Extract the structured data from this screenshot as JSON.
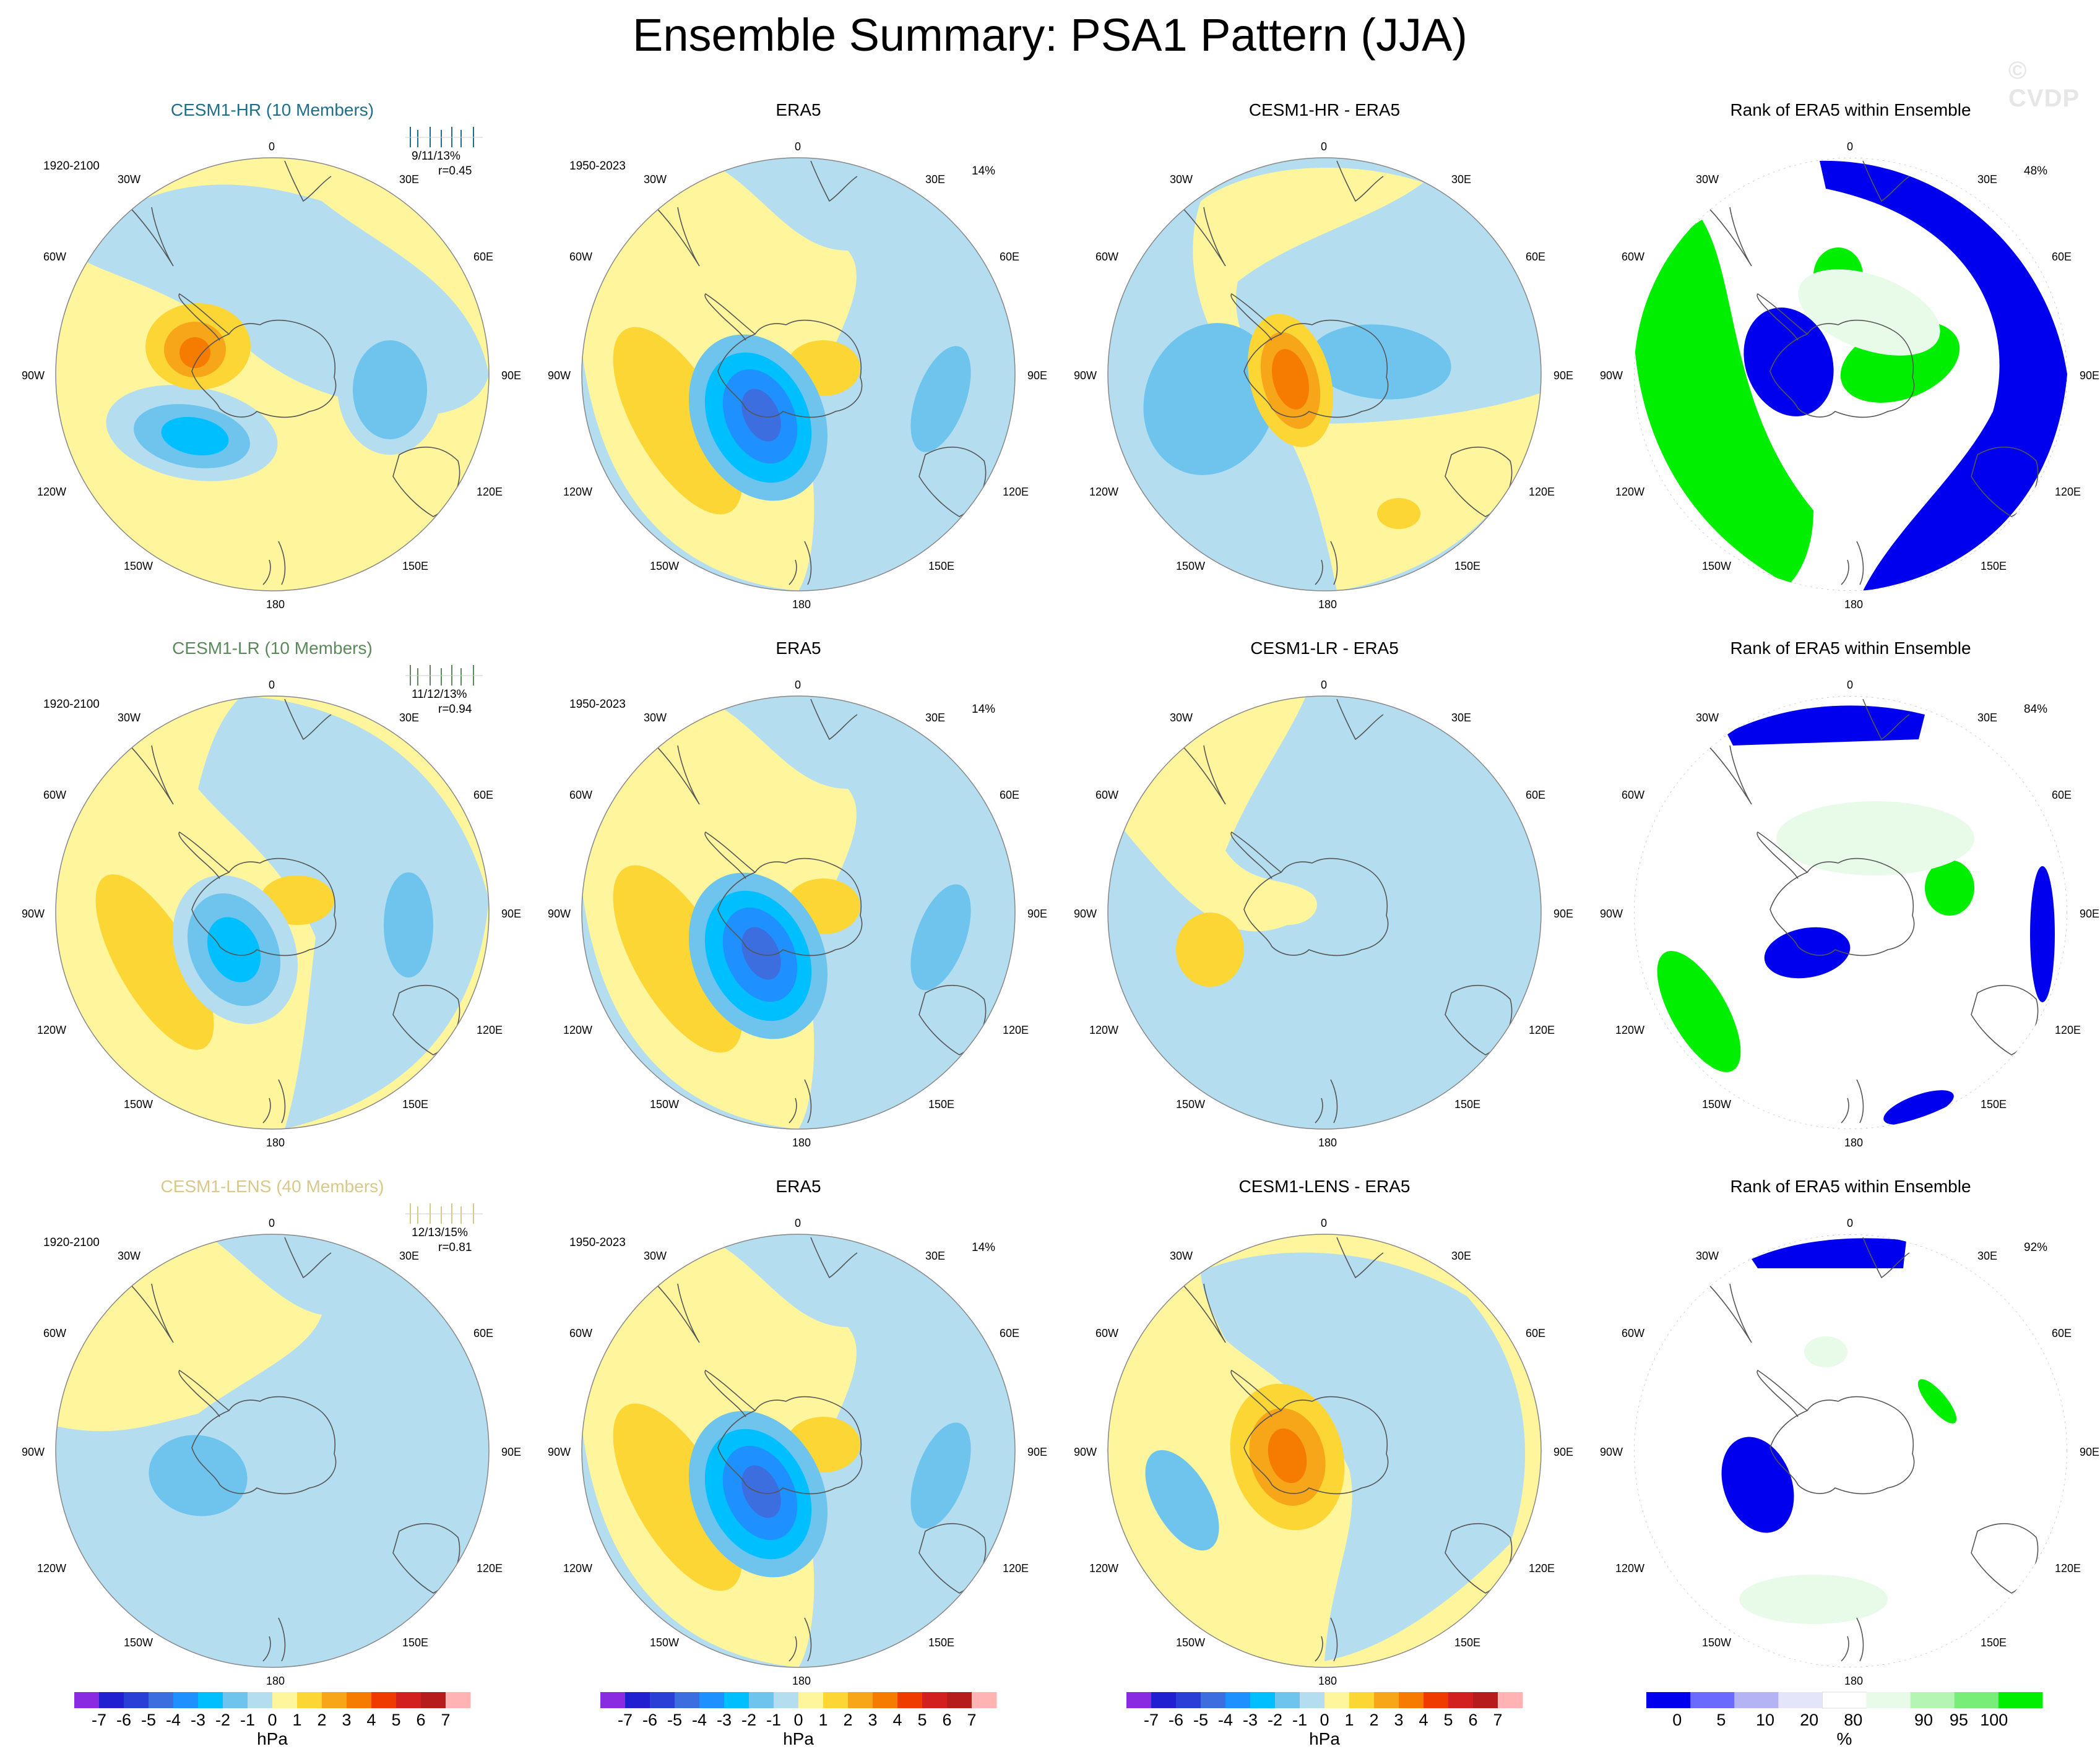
{
  "title": "Ensemble Summary: PSA1 Pattern (JJA)",
  "watermark": "© CVDP",
  "colors": {
    "model_hr": "#1f6f8b",
    "model_lr": "#5a8a5a",
    "model_lens": "#d8c98a",
    "anom_scale": [
      "#8a2be2",
      "#2020d0",
      "#2a3fd6",
      "#3c6ee0",
      "#1e90ff",
      "#00bfff",
      "#6fc4ee",
      "#b4ddf0",
      "#fff59d",
      "#fcd635",
      "#f8a619",
      "#f57c00",
      "#ef3b00",
      "#d21f1f",
      "#b71c1c",
      "#ffb3b3"
    ],
    "rank_scale": [
      "#0000ee",
      "#6a6aff",
      "#b4b4f5",
      "#e4e4fa",
      "#ffffff",
      "#e8fbe8",
      "#b4f5b4",
      "#78ee78",
      "#00ee00"
    ]
  },
  "lon_labels": [
    "0",
    "30E",
    "60E",
    "90E",
    "120E",
    "150E",
    "180",
    "150W",
    "120W",
    "90W",
    "60W",
    "30W"
  ],
  "rows": [
    {
      "model": {
        "title": "CESM1-HR (10 Members)",
        "years": "1920-2100",
        "stat": "9/11/13%",
        "r": "r=0.45",
        "color_key": "model_hr"
      },
      "obs": {
        "title": "ERA5",
        "years": "1950-2023",
        "pct": "14%"
      },
      "diff": {
        "title": "CESM1-HR - ERA5"
      },
      "rank": {
        "title": "Rank of ERA5 within Ensemble",
        "pct": "48%"
      }
    },
    {
      "model": {
        "title": "CESM1-LR (10 Members)",
        "years": "1920-2100",
        "stat": "11/12/13%",
        "r": "r=0.94",
        "color_key": "model_lr"
      },
      "obs": {
        "title": "ERA5",
        "years": "1950-2023",
        "pct": "14%"
      },
      "diff": {
        "title": "CESM1-LR - ERA5"
      },
      "rank": {
        "title": "Rank of ERA5 within Ensemble",
        "pct": "84%"
      }
    },
    {
      "model": {
        "title": "CESM1-LENS (40 Members)",
        "years": "1920-2100",
        "stat": "12/13/15%",
        "r": "r=0.81",
        "color_key": "model_lens"
      },
      "obs": {
        "title": "ERA5",
        "years": "1950-2023",
        "pct": "14%"
      },
      "diff": {
        "title": "CESM1-LENS - ERA5"
      },
      "rank": {
        "title": "Rank of ERA5 within Ensemble",
        "pct": "92%"
      }
    }
  ],
  "colorbar_anom": {
    "ticks": [
      "-7",
      "-6",
      "-5",
      "-4",
      "-3",
      "-2",
      "-1",
      "0",
      "1",
      "2",
      "3",
      "4",
      "5",
      "6",
      "7"
    ],
    "unit": "hPa"
  },
  "colorbar_rank": {
    "ticks": [
      "0",
      "5",
      "10",
      "20",
      "80",
      "90",
      "95",
      "100"
    ],
    "unit": "%"
  },
  "chart_data": {
    "type": "heatmap",
    "title": "Ensemble Summary: PSA1 Pattern (JJA)",
    "projection": "south polar stereographic",
    "units": [
      "hPa",
      "%"
    ],
    "anomaly_levels": [
      -7,
      -6,
      -5,
      -4,
      -3,
      -2,
      -1,
      0,
      1,
      2,
      3,
      4,
      5,
      6,
      7
    ],
    "rank_levels": [
      0,
      5,
      10,
      20,
      80,
      90,
      95,
      100
    ],
    "panels": [
      {
        "name": "CESM1-HR (10 Members)",
        "years": "1920-2100",
        "explained_variance": "9/11/13%",
        "pattern_correlation": 0.45,
        "features": [
          {
            "type": "anomaly",
            "lon": -80,
            "lat": -50,
            "value": 3
          },
          {
            "type": "anomaly",
            "lon": -110,
            "lat": -58,
            "value": -3
          },
          {
            "type": "anomaly",
            "lon": 90,
            "lat": -58,
            "value": -2
          }
        ]
      },
      {
        "name": "ERA5",
        "years": "1950-2023",
        "explained_variance": "14%",
        "features": [
          {
            "type": "anomaly",
            "lon": -105,
            "lat": -65,
            "value": -5
          },
          {
            "type": "anomaly",
            "lon": -135,
            "lat": -45,
            "value": 1
          },
          {
            "type": "anomaly",
            "lon": 95,
            "lat": -45,
            "value": -2
          }
        ]
      },
      {
        "name": "CESM1-HR - ERA5",
        "features": [
          {
            "type": "anomaly",
            "lon": -85,
            "lat": -60,
            "value": 4
          },
          {
            "type": "anomaly",
            "lon": -100,
            "lat": -40,
            "value": -2
          },
          {
            "type": "anomaly",
            "lon": 70,
            "lat": -70,
            "value": -2
          }
        ]
      },
      {
        "name": "Rank of ERA5 within Ensemble (HR)",
        "area_percent": "48%"
      },
      {
        "name": "CESM1-LR (10 Members)",
        "years": "1920-2100",
        "explained_variance": "11/12/13%",
        "pattern_correlation": 0.94,
        "features": [
          {
            "type": "anomaly",
            "lon": -105,
            "lat": -60,
            "value": -4
          },
          {
            "type": "anomaly",
            "lon": -135,
            "lat": -45,
            "value": 1
          },
          {
            "type": "anomaly",
            "lon": 90,
            "lat": -48,
            "value": -2
          }
        ]
      },
      {
        "name": "ERA5",
        "years": "1950-2023",
        "explained_variance": "14%"
      },
      {
        "name": "CESM1-LR - ERA5",
        "features": [
          {
            "type": "anomaly",
            "lon": -95,
            "lat": -60,
            "value": 1
          }
        ]
      },
      {
        "name": "Rank of ERA5 within Ensemble (LR)",
        "area_percent": "84%"
      },
      {
        "name": "CESM1-LENS (40 Members)",
        "years": "1920-2100",
        "explained_variance": "12/13/15%",
        "pattern_correlation": 0.81,
        "features": [
          {
            "type": "anomaly",
            "lon": -105,
            "lat": -60,
            "value": -2
          }
        ]
      },
      {
        "name": "ERA5",
        "years": "1950-2023",
        "explained_variance": "14%"
      },
      {
        "name": "CESM1-LENS - ERA5",
        "features": [
          {
            "type": "anomaly",
            "lon": -100,
            "lat": -60,
            "value": 4
          },
          {
            "type": "anomaly",
            "lon": -110,
            "lat": -40,
            "value": -2
          }
        ]
      },
      {
        "name": "Rank of ERA5 within Ensemble (LENS)",
        "area_percent": "92%"
      }
    ]
  }
}
